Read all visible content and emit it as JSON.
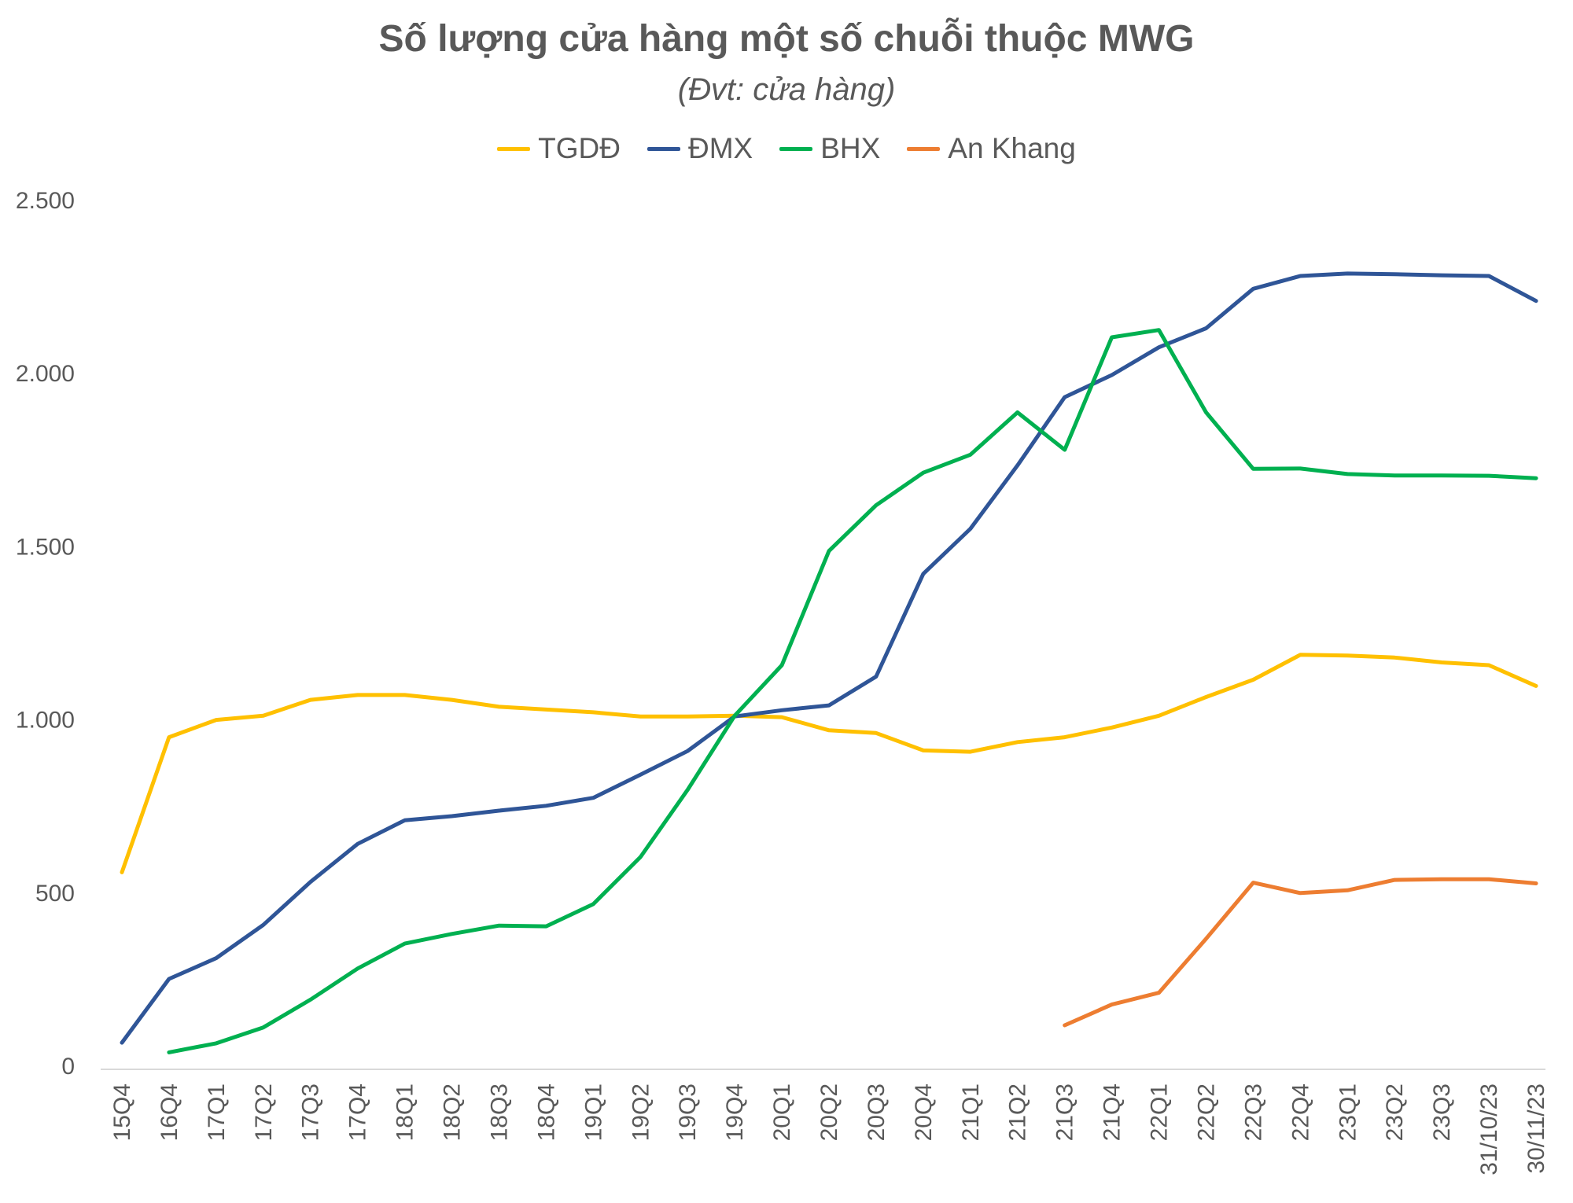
{
  "chart_data": {
    "type": "line",
    "title": "Số lượng cửa hàng một số chuỗi thuộc MWG",
    "subtitle": "(Đvt: cửa hàng)",
    "xlabel": "",
    "ylabel": "",
    "ylim": [
      0,
      2500
    ],
    "yticks": [
      0,
      500,
      1000,
      1500,
      2000,
      2500
    ],
    "ytick_labels": [
      "0",
      "500",
      "1.000",
      "1.500",
      "2.000",
      "2.500"
    ],
    "legend_position": "top-center",
    "grid": false,
    "categories": [
      "15Q4",
      "16Q4",
      "17Q1",
      "17Q2",
      "17Q3",
      "17Q4",
      "18Q1",
      "18Q2",
      "18Q3",
      "18Q4",
      "19Q1",
      "19Q2",
      "19Q3",
      "19Q4",
      "20Q1",
      "20Q2",
      "20Q3",
      "20Q4",
      "21Q1",
      "21Q2",
      "21Q3",
      "21Q4",
      "22Q1",
      "22Q2",
      "22Q3",
      "22Q4",
      "23Q1",
      "23Q2",
      "23Q3",
      "31/10/23",
      "30/11/23"
    ],
    "series": [
      {
        "name": "TGDĐ",
        "color": "#FFC000",
        "values": [
          560,
          950,
          1000,
          1012,
          1058,
          1072,
          1072,
          1058,
          1038,
          1030,
          1022,
          1010,
          1010,
          1012,
          1008,
          970,
          962,
          912,
          908,
          936,
          950,
          978,
          1012,
          1066,
          1116,
          1188,
          1186,
          1180,
          1166,
          1158,
          1098
        ]
      },
      {
        "name": "ĐMX",
        "color": "#2F5597",
        "values": [
          68,
          252,
          312,
          408,
          532,
          642,
          710,
          722,
          738,
          752,
          775,
          842,
          910,
          1010,
          1028,
          1042,
          1125,
          1422,
          1552,
          1735,
          1932,
          1996,
          2076,
          2131,
          2245,
          2282,
          2289,
          2287,
          2284,
          2282,
          2210
        ]
      },
      {
        "name": "BHX",
        "color": "#00B050",
        "values": [
          null,
          40,
          66,
          112,
          192,
          282,
          354,
          382,
          406,
          404,
          468,
          604,
          798,
          1012,
          1158,
          1488,
          1620,
          1714,
          1766,
          1888,
          1780,
          2105,
          2126,
          1888,
          1725,
          1726,
          1710,
          1706,
          1706,
          1705,
          1698
        ]
      },
      {
        "name": "An Khang",
        "color": "#ED7D31",
        "values": [
          null,
          null,
          null,
          null,
          null,
          null,
          null,
          null,
          null,
          null,
          null,
          null,
          null,
          null,
          null,
          null,
          null,
          null,
          null,
          null,
          118,
          178,
          212,
          368,
          530,
          500,
          508,
          538,
          540,
          540,
          528
        ]
      }
    ]
  }
}
